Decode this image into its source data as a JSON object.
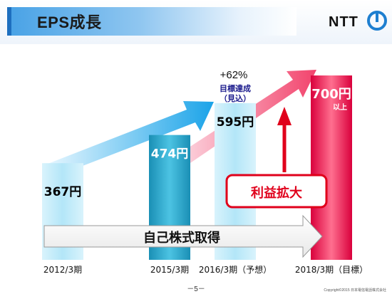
{
  "header": {
    "title": "EPS成長",
    "logo_text": "NTT",
    "logo_icon": "ntt-logo-icon"
  },
  "chart_data": {
    "type": "bar",
    "categories": [
      "2012/3期",
      "2015/3期",
      "2016/3期（予想）",
      "2018/3期（目標）"
    ],
    "values": [
      367,
      474,
      595,
      700
    ],
    "unit": "円",
    "data_labels": [
      "367円",
      "474円",
      "595円",
      "700円"
    ],
    "data_label_suffix": "以上",
    "bar_colors": [
      "#c6ecfa",
      "#2fb0d2",
      "#c6ecfa",
      "#f2436c"
    ],
    "annotations": {
      "growth": "+62%",
      "target_status": "目標達成",
      "target_status_sub": "（見込）",
      "profit_expansion": "利益拡大",
      "buyback": "自己株式取得"
    },
    "colors": {
      "growth_label": "#1a237e",
      "profit_border": "#e0001b",
      "profit_text": "#e0001b",
      "target_text": "#1a1a8c"
    }
  },
  "footer": {
    "page": "－5－",
    "copyright": "Copyright©2015 日本電信電話株式会社"
  }
}
